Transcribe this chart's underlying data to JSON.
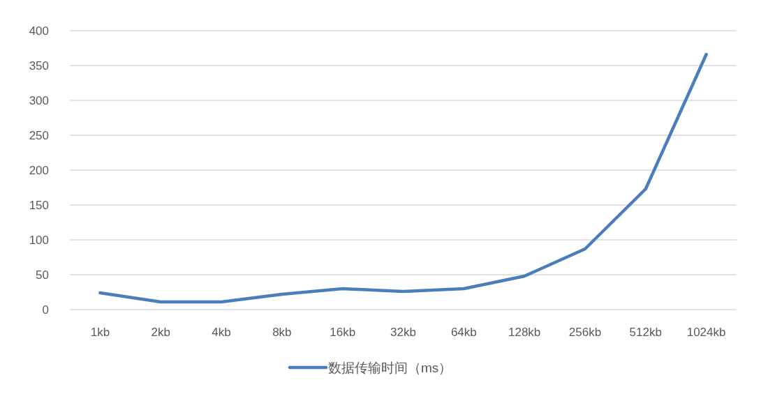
{
  "chart_data": {
    "type": "line",
    "categories": [
      "1kb",
      "2kb",
      "4kb",
      "8kb",
      "16kb",
      "32kb",
      "64kb",
      "128kb",
      "256kb",
      "512kb",
      "1024kb"
    ],
    "series": [
      {
        "name": "数据传输时间（ms）",
        "color": "#4a7ebb",
        "values": [
          24,
          11,
          11,
          22,
          30,
          26,
          30,
          48,
          87,
          173,
          366
        ]
      }
    ],
    "ylim": [
      0,
      400
    ],
    "yticks": [
      0,
      50,
      100,
      150,
      200,
      250,
      300,
      350,
      400
    ],
    "grid": "y",
    "legend": "bottom",
    "marker": "none",
    "line_style": "solid"
  }
}
